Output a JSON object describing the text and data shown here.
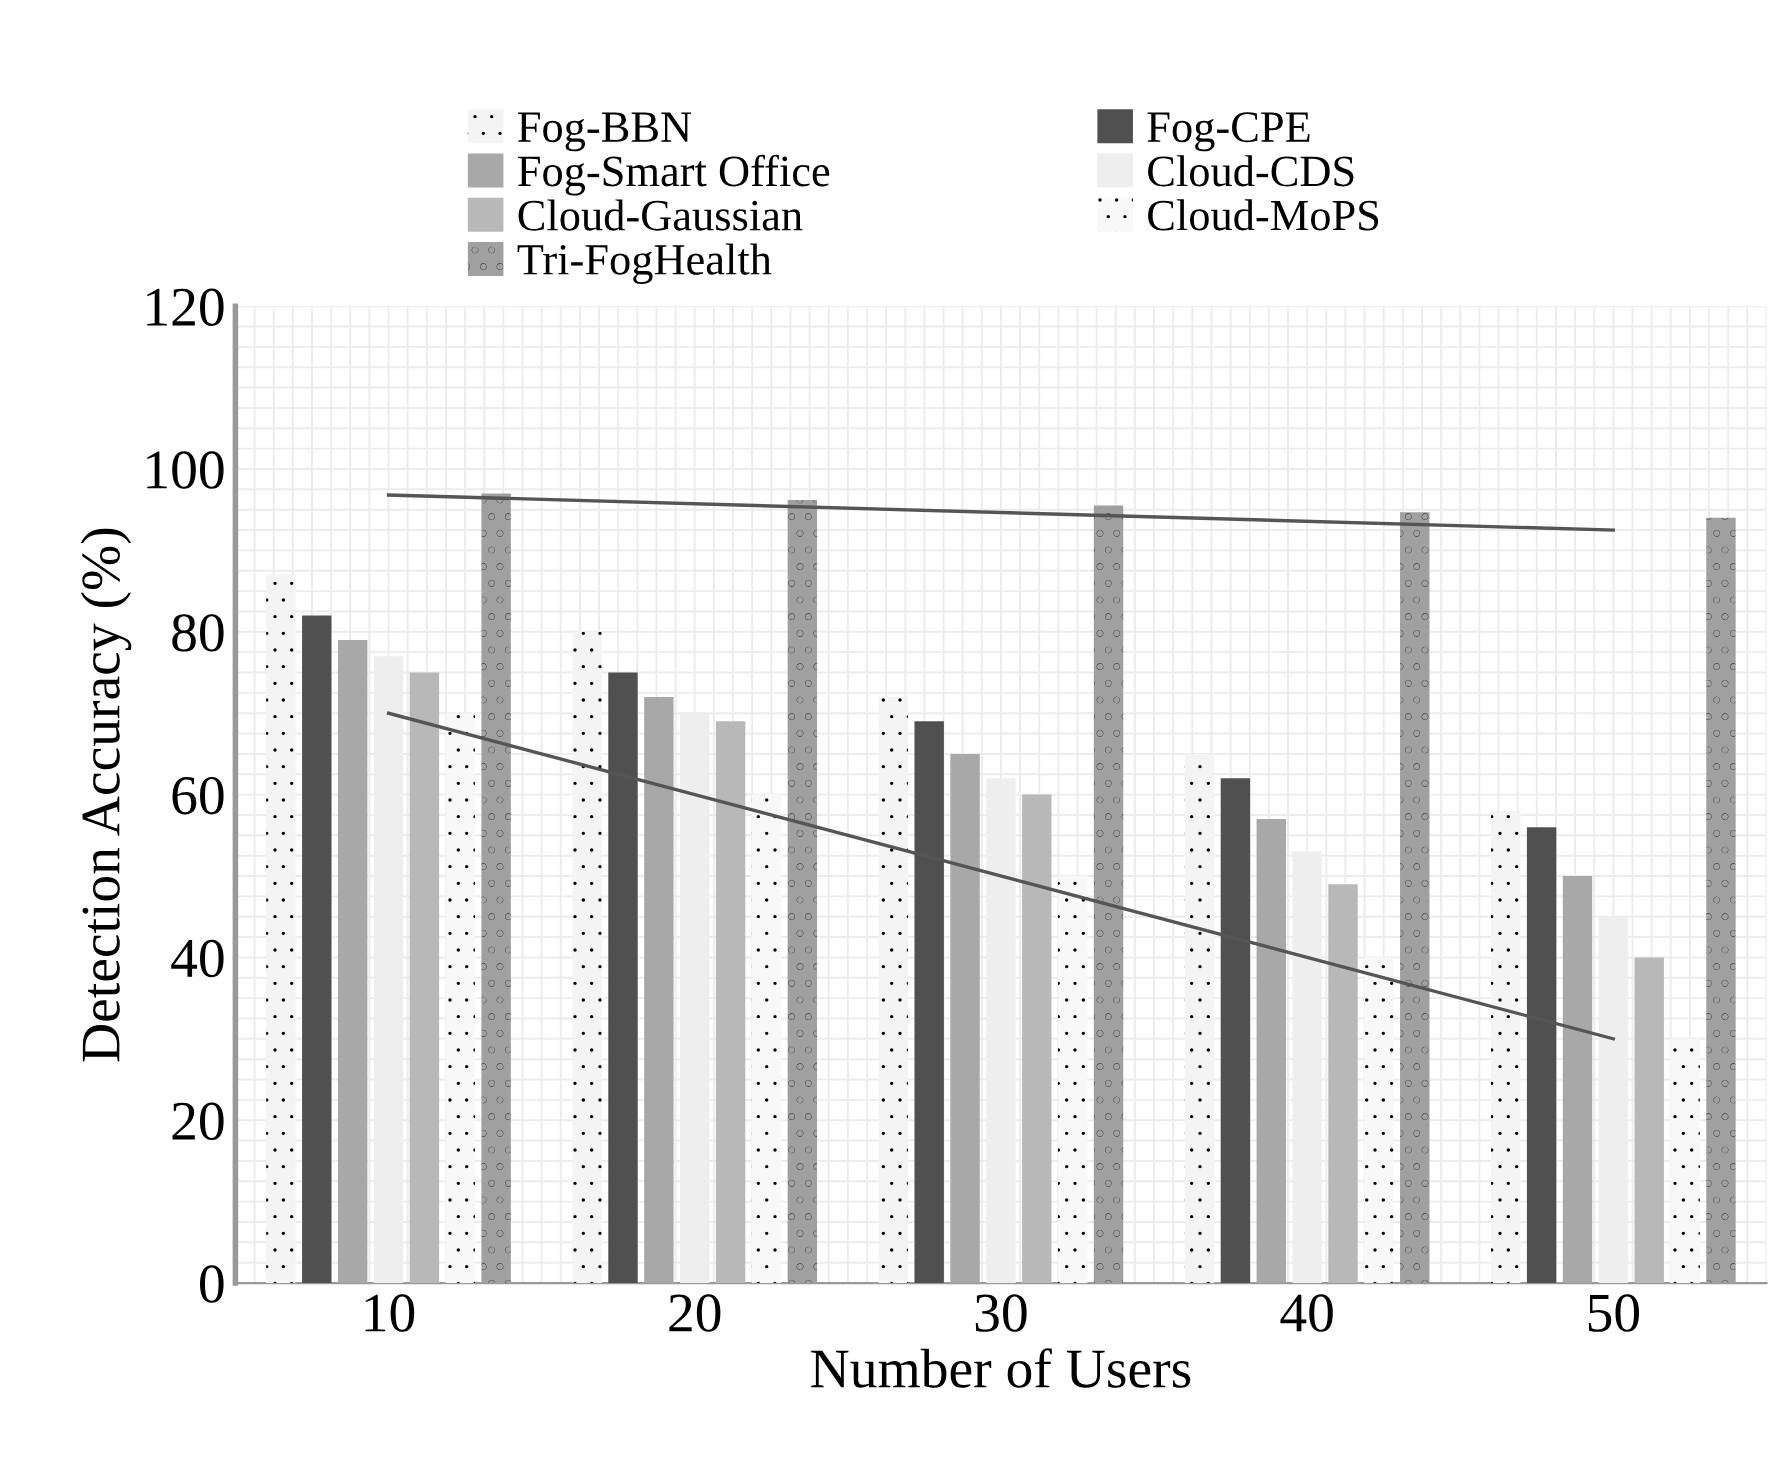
{
  "chart_data": {
    "type": "bar",
    "xlabel": "Number of Users",
    "ylabel": "Detection Accuracy (%)",
    "categories": [
      "10",
      "20",
      "30",
      "40",
      "50"
    ],
    "series": [
      {
        "name": "Fog-BBN",
        "color": "#f4f4f4",
        "values": [
          87,
          80,
          72,
          65,
          58
        ]
      },
      {
        "name": "Fog-CPE",
        "color": "#505050",
        "values": [
          82,
          75,
          69,
          62,
          56
        ]
      },
      {
        "name": "Fog-Smart Office",
        "color": "#a8a8a8",
        "values": [
          79,
          72,
          65,
          57,
          50
        ]
      },
      {
        "name": "Cloud-CDS",
        "color": "#eeeeee",
        "values": [
          77,
          70,
          62,
          53,
          45
        ]
      },
      {
        "name": "Cloud-Gaussian",
        "color": "#b8b8b8",
        "values": [
          75,
          69,
          60,
          49,
          40
        ]
      },
      {
        "name": "Cloud-MoPS",
        "color": "#f8f8f8",
        "values": [
          70,
          60,
          50,
          40,
          30
        ]
      },
      {
        "name": "Tri-FogHealth",
        "color": "#a0a0a0",
        "values": [
          97,
          96.2,
          95.5,
          94.7,
          94
        ]
      },
      {
        "type": "line",
        "color": "#555555",
        "x": [
          "10",
          "50"
        ],
        "values": [
          70,
          30
        ]
      },
      {
        "type": "line",
        "color": "#555555",
        "x": [
          "10",
          "50"
        ],
        "values": [
          96.8,
          92.5
        ]
      }
    ],
    "ylim": [
      0,
      120
    ],
    "yticks": [
      0,
      20,
      40,
      60,
      80,
      100,
      120
    ],
    "grid": true,
    "legend": "top"
  }
}
